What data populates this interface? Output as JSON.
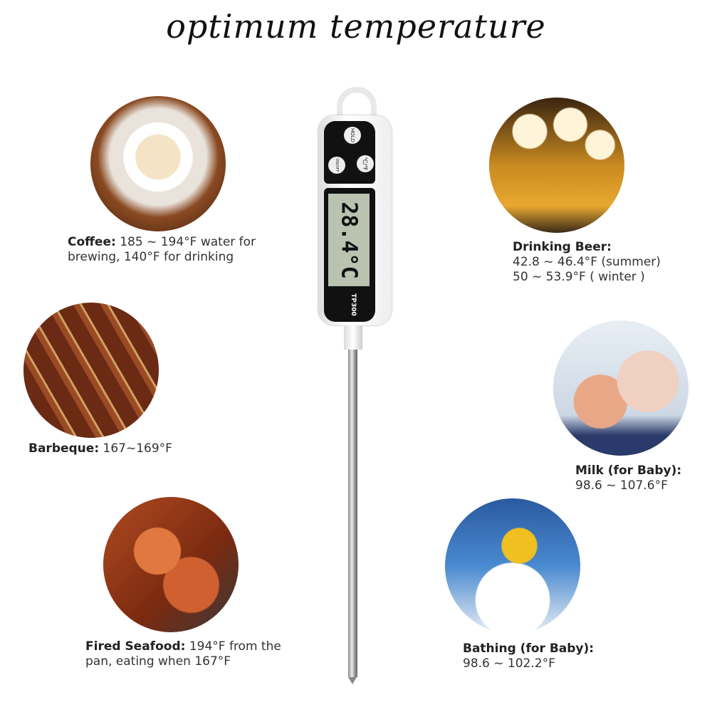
{
  "title": "optimum temperature",
  "thermometer": {
    "hold": "HOLD",
    "onoff": "ON/OFF",
    "unit_toggle": "℃/℉",
    "reading": "28.4°C",
    "model": "TP300"
  },
  "captions": {
    "coffee": {
      "label": "Coffee:",
      "line1": "185 ~ 194°F water for",
      "line2": "brewing, 140°F for drinking"
    },
    "beer": {
      "label": "Drinking Beer:",
      "line1": "42.8 ~ 46.4°F (summer)",
      "line2": "50 ~ 53.9°F ( winter )"
    },
    "bbq": {
      "label": "Barbeque:",
      "line1": "167~169°F"
    },
    "milk": {
      "label": "Milk (for Baby):",
      "line1": "98.6 ~ 107.6°F"
    },
    "seafood": {
      "label": "Fired Seafood:",
      "line1": "194°F from the",
      "line2": "pan, eating when 167°F"
    },
    "bath": {
      "label": "Bathing (for Baby):",
      "line1": "98.6 ~ 102.2°F"
    }
  }
}
